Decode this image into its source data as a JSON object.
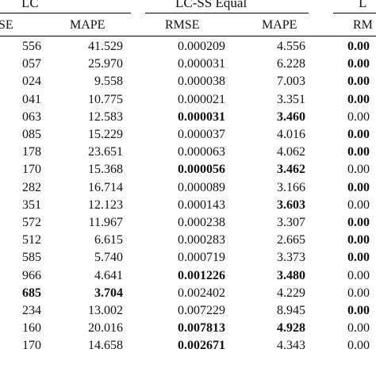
{
  "groups": [
    {
      "label": "LC"
    },
    {
      "label": "LC-SS Equal"
    },
    {
      "label": "L"
    }
  ],
  "headers": [
    "SE",
    "MAPE",
    "RMSE",
    "MAPE",
    "RM"
  ],
  "rows": [
    {
      "c1": "556",
      "c2": "41.529",
      "c3": "0.000209",
      "c4": "4.556",
      "c5": "0.00"
    },
    {
      "c1": "057",
      "c2": "25.970",
      "c3": "0.000031",
      "c4": "6.228",
      "c5": "0.00"
    },
    {
      "c1": "024",
      "c2": "9.558",
      "c3": "0.000038",
      "c4": "7.003",
      "c5": "0.00"
    },
    {
      "c1": "041",
      "c2": "10.775",
      "c3": "0.000021",
      "c4": "3.351",
      "c5": "0.00"
    },
    {
      "c1": "063",
      "c2": "12.583",
      "c3": "0.000031",
      "c4": "3.460",
      "c5": "0.00"
    },
    {
      "c1": "085",
      "c2": "15.229",
      "c3": "0.000037",
      "c4": "4.016",
      "c5": "0.00"
    },
    {
      "c1": "178",
      "c2": "23.651",
      "c3": "0.000063",
      "c4": "4.062",
      "c5": "0.00"
    },
    {
      "c1": "170",
      "c2": "15.368",
      "c3": "0.000056",
      "c4": "3.462",
      "c5": "0.00"
    },
    {
      "c1": "282",
      "c2": "16.714",
      "c3": "0.000089",
      "c4": "3.166",
      "c5": "0.00"
    },
    {
      "c1": "351",
      "c2": "12.123",
      "c3": "0.000143",
      "c4": "3.603",
      "c5": "0.00"
    },
    {
      "c1": "572",
      "c2": "11.967",
      "c3": "0.000238",
      "c4": "3.307",
      "c5": "0.00"
    },
    {
      "c1": "512",
      "c2": "6.615",
      "c3": "0.000283",
      "c4": "2.665",
      "c5": "0.00"
    },
    {
      "c1": "585",
      "c2": "5.740",
      "c3": "0.000719",
      "c4": "3.373",
      "c5": "0.00"
    },
    {
      "c1": "966",
      "c2": "4.641",
      "c3": "0.001226",
      "c4": "3.480",
      "c5": "0.00"
    },
    {
      "c1": "685",
      "c2": "3.704",
      "c3": "0.002402",
      "c4": "4.229",
      "c5": "0.00"
    },
    {
      "c1": "234",
      "c2": "13.002",
      "c3": "0.007229",
      "c4": "8.945",
      "c5": "0.00"
    },
    {
      "c1": "160",
      "c2": "20.016",
      "c3": "0.007813",
      "c4": "4.928",
      "c5": "0.00"
    },
    {
      "c1": "170",
      "c2": "14.658",
      "c3": "0.002671",
      "c4": "4.343",
      "c5": "0.00"
    }
  ],
  "bold": [
    [
      false,
      false,
      false,
      false,
      true
    ],
    [
      false,
      false,
      false,
      false,
      true
    ],
    [
      false,
      false,
      false,
      false,
      true
    ],
    [
      false,
      false,
      false,
      false,
      true
    ],
    [
      false,
      false,
      true,
      true,
      false
    ],
    [
      false,
      false,
      false,
      false,
      true
    ],
    [
      false,
      false,
      false,
      false,
      true
    ],
    [
      false,
      false,
      true,
      true,
      false
    ],
    [
      false,
      false,
      false,
      false,
      true
    ],
    [
      false,
      false,
      false,
      true,
      false
    ],
    [
      false,
      false,
      false,
      false,
      true
    ],
    [
      false,
      false,
      false,
      false,
      true
    ],
    [
      false,
      false,
      false,
      false,
      true
    ],
    [
      false,
      false,
      true,
      true,
      false
    ],
    [
      true,
      true,
      false,
      false,
      false
    ],
    [
      false,
      false,
      false,
      false,
      true
    ],
    [
      false,
      false,
      true,
      true,
      false
    ],
    [
      false,
      false,
      true,
      false,
      false
    ]
  ]
}
